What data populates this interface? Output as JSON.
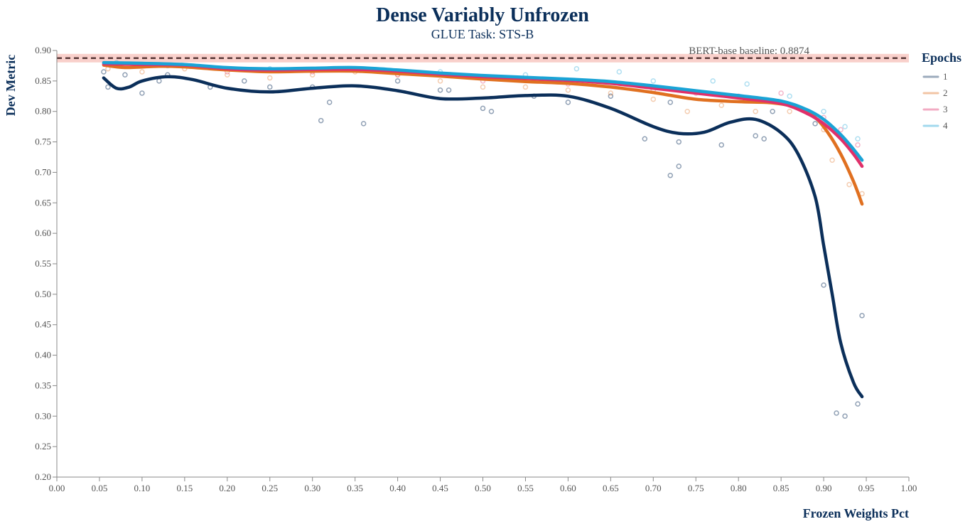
{
  "chart_data": {
    "type": "scatter",
    "title": "Dense Variably Unfrozen",
    "subtitle": "GLUE Task: STS-B",
    "xlabel": "Frozen Weights Pct",
    "ylabel": "Dev Metric",
    "xlim": [
      0.0,
      1.0
    ],
    "ylim": [
      0.2,
      0.9
    ],
    "x_ticks": [
      "0.00",
      "0.05",
      "0.10",
      "0.15",
      "0.20",
      "0.25",
      "0.30",
      "0.35",
      "0.40",
      "0.45",
      "0.50",
      "0.55",
      "0.60",
      "0.65",
      "0.70",
      "0.75",
      "0.80",
      "0.85",
      "0.90",
      "0.95",
      "1.00"
    ],
    "y_ticks": [
      "0.20",
      "0.25",
      "0.30",
      "0.35",
      "0.40",
      "0.45",
      "0.50",
      "0.55",
      "0.60",
      "0.65",
      "0.70",
      "0.75",
      "0.80",
      "0.85",
      "0.90"
    ],
    "baseline": {
      "label": "BERT-base baseline: 0.8874",
      "value": 0.8874
    },
    "legend": {
      "title": "Epochs",
      "placement": "right"
    },
    "series": [
      {
        "name": "1",
        "color": "#0b2f5a",
        "trend": [
          [
            0.055,
            0.855
          ],
          [
            0.07,
            0.838
          ],
          [
            0.085,
            0.84
          ],
          [
            0.1,
            0.85
          ],
          [
            0.13,
            0.857
          ],
          [
            0.16,
            0.852
          ],
          [
            0.2,
            0.838
          ],
          [
            0.25,
            0.832
          ],
          [
            0.3,
            0.838
          ],
          [
            0.35,
            0.842
          ],
          [
            0.4,
            0.834
          ],
          [
            0.45,
            0.821
          ],
          [
            0.5,
            0.822
          ],
          [
            0.55,
            0.826
          ],
          [
            0.6,
            0.825
          ],
          [
            0.65,
            0.805
          ],
          [
            0.7,
            0.775
          ],
          [
            0.73,
            0.764
          ],
          [
            0.76,
            0.766
          ],
          [
            0.79,
            0.782
          ],
          [
            0.82,
            0.787
          ],
          [
            0.85,
            0.765
          ],
          [
            0.87,
            0.73
          ],
          [
            0.89,
            0.66
          ],
          [
            0.9,
            0.58
          ],
          [
            0.91,
            0.5
          ],
          [
            0.92,
            0.42
          ],
          [
            0.935,
            0.355
          ],
          [
            0.945,
            0.332
          ]
        ],
        "points": [
          [
            0.055,
            0.865
          ],
          [
            0.06,
            0.84
          ],
          [
            0.08,
            0.86
          ],
          [
            0.1,
            0.83
          ],
          [
            0.12,
            0.85
          ],
          [
            0.13,
            0.86
          ],
          [
            0.18,
            0.84
          ],
          [
            0.22,
            0.85
          ],
          [
            0.25,
            0.84
          ],
          [
            0.3,
            0.84
          ],
          [
            0.31,
            0.785
          ],
          [
            0.32,
            0.815
          ],
          [
            0.36,
            0.78
          ],
          [
            0.4,
            0.85
          ],
          [
            0.45,
            0.835
          ],
          [
            0.46,
            0.835
          ],
          [
            0.5,
            0.805
          ],
          [
            0.51,
            0.8
          ],
          [
            0.56,
            0.825
          ],
          [
            0.6,
            0.815
          ],
          [
            0.65,
            0.825
          ],
          [
            0.69,
            0.755
          ],
          [
            0.72,
            0.815
          ],
          [
            0.72,
            0.695
          ],
          [
            0.73,
            0.75
          ],
          [
            0.73,
            0.71
          ],
          [
            0.78,
            0.745
          ],
          [
            0.82,
            0.76
          ],
          [
            0.83,
            0.755
          ],
          [
            0.84,
            0.8
          ],
          [
            0.89,
            0.78
          ],
          [
            0.9,
            0.515
          ],
          [
            0.915,
            0.305
          ],
          [
            0.925,
            0.3
          ],
          [
            0.94,
            0.32
          ],
          [
            0.945,
            0.465
          ]
        ]
      },
      {
        "name": "2",
        "color": "#e07020",
        "trend": [
          [
            0.055,
            0.876
          ],
          [
            0.08,
            0.872
          ],
          [
            0.12,
            0.874
          ],
          [
            0.15,
            0.873
          ],
          [
            0.2,
            0.868
          ],
          [
            0.25,
            0.865
          ],
          [
            0.3,
            0.866
          ],
          [
            0.35,
            0.866
          ],
          [
            0.4,
            0.862
          ],
          [
            0.45,
            0.858
          ],
          [
            0.5,
            0.853
          ],
          [
            0.55,
            0.849
          ],
          [
            0.6,
            0.846
          ],
          [
            0.65,
            0.84
          ],
          [
            0.7,
            0.831
          ],
          [
            0.75,
            0.82
          ],
          [
            0.8,
            0.816
          ],
          [
            0.84,
            0.814
          ],
          [
            0.87,
            0.806
          ],
          [
            0.89,
            0.79
          ],
          [
            0.905,
            0.765
          ],
          [
            0.92,
            0.73
          ],
          [
            0.935,
            0.685
          ],
          [
            0.945,
            0.648
          ]
        ],
        "points": [
          [
            0.06,
            0.87
          ],
          [
            0.1,
            0.865
          ],
          [
            0.15,
            0.87
          ],
          [
            0.2,
            0.86
          ],
          [
            0.25,
            0.855
          ],
          [
            0.3,
            0.86
          ],
          [
            0.35,
            0.865
          ],
          [
            0.4,
            0.86
          ],
          [
            0.45,
            0.85
          ],
          [
            0.5,
            0.84
          ],
          [
            0.55,
            0.84
          ],
          [
            0.6,
            0.835
          ],
          [
            0.65,
            0.83
          ],
          [
            0.7,
            0.82
          ],
          [
            0.74,
            0.8
          ],
          [
            0.78,
            0.81
          ],
          [
            0.82,
            0.8
          ],
          [
            0.86,
            0.8
          ],
          [
            0.9,
            0.77
          ],
          [
            0.91,
            0.72
          ],
          [
            0.93,
            0.68
          ],
          [
            0.945,
            0.665
          ]
        ]
      },
      {
        "name": "3",
        "color": "#e0306a",
        "trend": [
          [
            0.055,
            0.878
          ],
          [
            0.1,
            0.877
          ],
          [
            0.15,
            0.876
          ],
          [
            0.2,
            0.87
          ],
          [
            0.25,
            0.868
          ],
          [
            0.3,
            0.869
          ],
          [
            0.35,
            0.869
          ],
          [
            0.4,
            0.866
          ],
          [
            0.45,
            0.861
          ],
          [
            0.5,
            0.857
          ],
          [
            0.55,
            0.854
          ],
          [
            0.6,
            0.851
          ],
          [
            0.65,
            0.846
          ],
          [
            0.7,
            0.838
          ],
          [
            0.75,
            0.83
          ],
          [
            0.8,
            0.822
          ],
          [
            0.85,
            0.813
          ],
          [
            0.88,
            0.797
          ],
          [
            0.9,
            0.78
          ],
          [
            0.92,
            0.755
          ],
          [
            0.935,
            0.73
          ],
          [
            0.945,
            0.71
          ]
        ],
        "points": [
          [
            0.1,
            0.875
          ],
          [
            0.2,
            0.865
          ],
          [
            0.3,
            0.865
          ],
          [
            0.4,
            0.86
          ],
          [
            0.5,
            0.85
          ],
          [
            0.6,
            0.845
          ],
          [
            0.7,
            0.835
          ],
          [
            0.75,
            0.83
          ],
          [
            0.8,
            0.825
          ],
          [
            0.85,
            0.83
          ],
          [
            0.9,
            0.79
          ],
          [
            0.92,
            0.77
          ],
          [
            0.94,
            0.745
          ]
        ]
      },
      {
        "name": "4",
        "color": "#1aa3d6",
        "trend": [
          [
            0.055,
            0.88
          ],
          [
            0.1,
            0.879
          ],
          [
            0.15,
            0.877
          ],
          [
            0.2,
            0.872
          ],
          [
            0.25,
            0.87
          ],
          [
            0.3,
            0.871
          ],
          [
            0.35,
            0.872
          ],
          [
            0.4,
            0.868
          ],
          [
            0.45,
            0.863
          ],
          [
            0.5,
            0.859
          ],
          [
            0.55,
            0.856
          ],
          [
            0.6,
            0.853
          ],
          [
            0.65,
            0.849
          ],
          [
            0.7,
            0.842
          ],
          [
            0.75,
            0.834
          ],
          [
            0.8,
            0.826
          ],
          [
            0.85,
            0.817
          ],
          [
            0.88,
            0.803
          ],
          [
            0.9,
            0.787
          ],
          [
            0.92,
            0.762
          ],
          [
            0.935,
            0.738
          ],
          [
            0.945,
            0.72
          ]
        ],
        "points": [
          [
            0.07,
            0.88
          ],
          [
            0.13,
            0.875
          ],
          [
            0.25,
            0.87
          ],
          [
            0.35,
            0.87
          ],
          [
            0.45,
            0.865
          ],
          [
            0.55,
            0.86
          ],
          [
            0.61,
            0.87
          ],
          [
            0.66,
            0.865
          ],
          [
            0.7,
            0.85
          ],
          [
            0.77,
            0.85
          ],
          [
            0.81,
            0.845
          ],
          [
            0.86,
            0.825
          ],
          [
            0.9,
            0.8
          ],
          [
            0.925,
            0.775
          ],
          [
            0.94,
            0.755
          ]
        ]
      }
    ]
  }
}
